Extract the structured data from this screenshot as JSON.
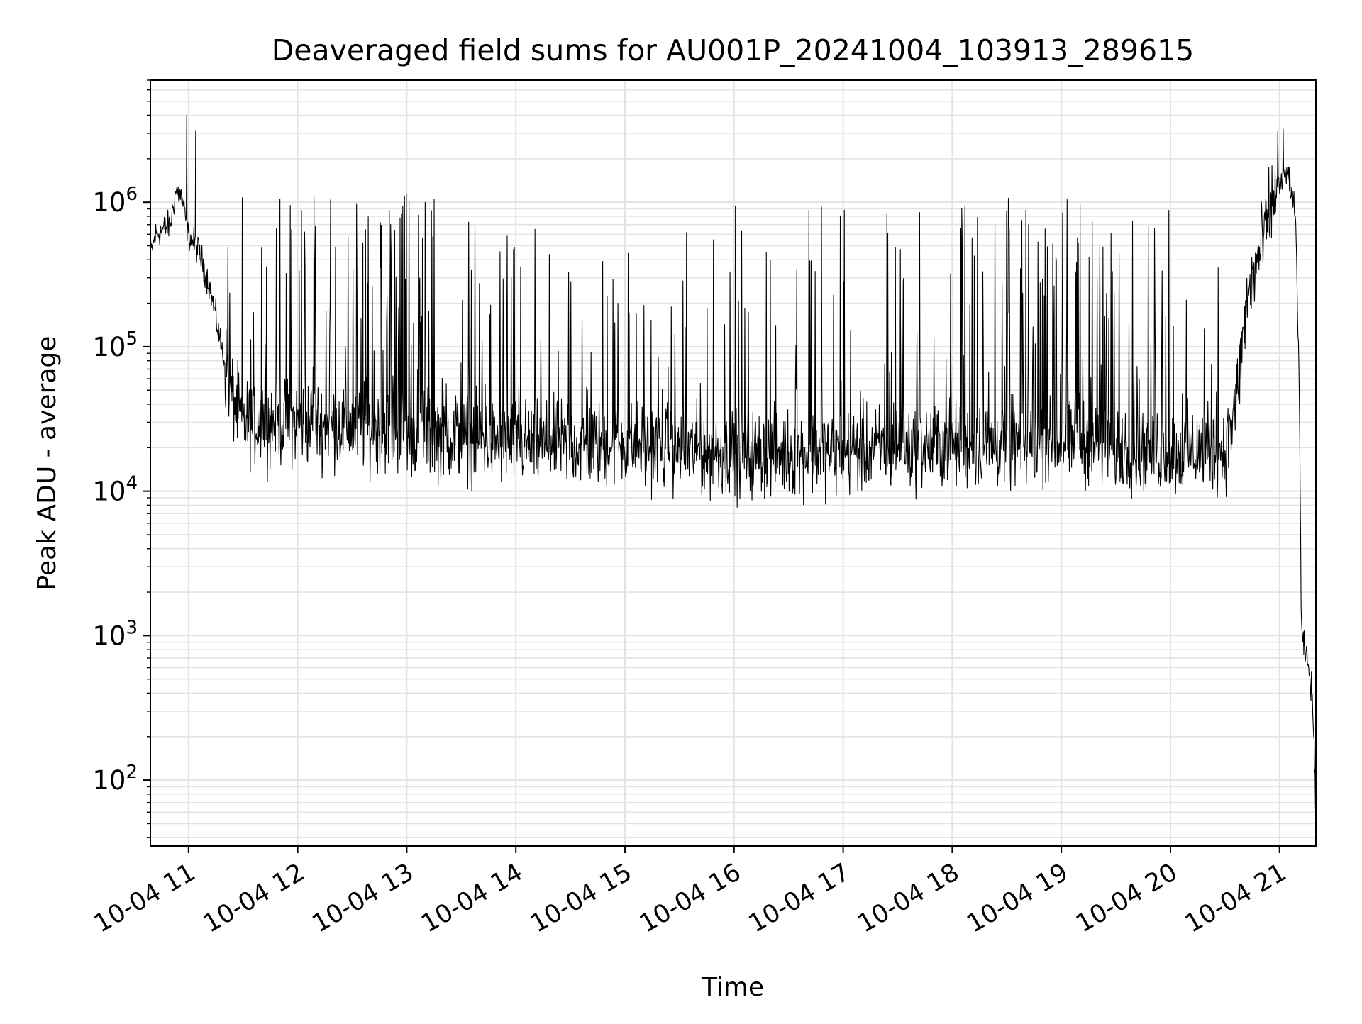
{
  "chart_data": {
    "type": "line",
    "title": "Deaveraged field sums for AU001P_20241004_103913_289615",
    "xlabel": "Time",
    "ylabel": "Peak ADU - average",
    "yscale": "log",
    "xlim": [
      "2024-10-04 10:39",
      "2024-10-04 21:20"
    ],
    "ylim": [
      35,
      7000000
    ],
    "grid": true,
    "line_color": "#000000",
    "grid_color": "#e3e3e3",
    "x_ticks": [
      {
        "t": "2024-10-04 11:00",
        "label": "10-04 11"
      },
      {
        "t": "2024-10-04 12:00",
        "label": "10-04 12"
      },
      {
        "t": "2024-10-04 13:00",
        "label": "10-04 13"
      },
      {
        "t": "2024-10-04 14:00",
        "label": "10-04 14"
      },
      {
        "t": "2024-10-04 15:00",
        "label": "10-04 15"
      },
      {
        "t": "2024-10-04 16:00",
        "label": "10-04 16"
      },
      {
        "t": "2024-10-04 17:00",
        "label": "10-04 17"
      },
      {
        "t": "2024-10-04 18:00",
        "label": "10-04 18"
      },
      {
        "t": "2024-10-04 19:00",
        "label": "10-04 19"
      },
      {
        "t": "2024-10-04 20:00",
        "label": "10-04 20"
      },
      {
        "t": "2024-10-04 21:00",
        "label": "10-04 21"
      }
    ],
    "y_ticks": [
      {
        "value": 100,
        "base": "10",
        "exp": "2"
      },
      {
        "value": 1000,
        "base": "10",
        "exp": "3"
      },
      {
        "value": 10000,
        "base": "10",
        "exp": "4"
      },
      {
        "value": 100000,
        "base": "10",
        "exp": "5"
      },
      {
        "value": 1000000,
        "base": "10",
        "exp": "6"
      }
    ],
    "series": [
      {
        "baseline": [
          {
            "t": "2024-10-04 10:39",
            "y": 430000
          },
          {
            "t": "2024-10-04 10:42",
            "y": 600000
          },
          {
            "t": "2024-10-04 10:50",
            "y": 700000
          },
          {
            "t": "2024-10-04 10:53",
            "y": 1200000
          },
          {
            "t": "2024-10-04 10:56",
            "y": 1100000
          },
          {
            "t": "2024-10-04 11:00",
            "y": 600000
          },
          {
            "t": "2024-10-04 11:06",
            "y": 450000
          },
          {
            "t": "2024-10-04 11:12",
            "y": 250000
          },
          {
            "t": "2024-10-04 11:18",
            "y": 100000
          },
          {
            "t": "2024-10-04 11:24",
            "y": 45000
          },
          {
            "t": "2024-10-04 11:30",
            "y": 30000
          },
          {
            "t": "2024-10-04 12:00",
            "y": 30000
          },
          {
            "t": "2024-10-04 13:00",
            "y": 26000
          },
          {
            "t": "2024-10-04 14:00",
            "y": 21000
          },
          {
            "t": "2024-10-04 15:00",
            "y": 21000
          },
          {
            "t": "2024-10-04 16:00",
            "y": 18000
          },
          {
            "t": "2024-10-04 17:00",
            "y": 19000
          },
          {
            "t": "2024-10-04 18:00",
            "y": 21000
          },
          {
            "t": "2024-10-04 19:00",
            "y": 21000
          },
          {
            "t": "2024-10-04 20:00",
            "y": 19000
          },
          {
            "t": "2024-10-04 20:30",
            "y": 19000
          },
          {
            "t": "2024-10-04 20:36",
            "y": 40000
          },
          {
            "t": "2024-10-04 20:42",
            "y": 200000
          },
          {
            "t": "2024-10-04 20:50",
            "y": 500000
          },
          {
            "t": "2024-10-04 20:58",
            "y": 1200000
          },
          {
            "t": "2024-10-04 21:05",
            "y": 1600000
          },
          {
            "t": "2024-10-04 21:09",
            "y": 700000
          },
          {
            "t": "2024-10-04 21:11",
            "y": 40000
          },
          {
            "t": "2024-10-04 21:12",
            "y": 1000
          },
          {
            "t": "2024-10-04 21:15",
            "y": 700
          },
          {
            "t": "2024-10-04 21:18",
            "y": 400
          },
          {
            "t": "2024-10-04 21:20",
            "y": 60
          }
        ],
        "noise_decades": 0.18,
        "spike_segments": [
          {
            "start": "2024-10-04 11:20",
            "end": "2024-10-04 11:40",
            "count": 6,
            "peak": 1200000
          },
          {
            "start": "2024-10-04 11:40",
            "end": "2024-10-04 12:30",
            "count": 30,
            "peak": 1200000
          },
          {
            "start": "2024-10-04 12:30",
            "end": "2024-10-04 13:15",
            "count": 55,
            "peak": 1150000
          },
          {
            "start": "2024-10-04 13:15",
            "end": "2024-10-04 14:00",
            "count": 25,
            "peak": 900000
          },
          {
            "start": "2024-10-04 14:00",
            "end": "2024-10-04 16:45",
            "count": 55,
            "peak": 950000
          },
          {
            "start": "2024-10-04 16:45",
            "end": "2024-10-04 18:30",
            "count": 45,
            "peak": 1000000
          },
          {
            "start": "2024-10-04 18:30",
            "end": "2024-10-04 19:25",
            "count": 60,
            "peak": 1100000
          },
          {
            "start": "2024-10-04 19:25",
            "end": "2024-10-04 20:30",
            "count": 30,
            "peak": 950000
          }
        ],
        "peaks": [
          {
            "t": "2024-10-04 10:59",
            "y": 4000000
          },
          {
            "t": "2024-10-04 11:04",
            "y": 3100000
          },
          {
            "t": "2024-10-04 20:59",
            "y": 3100000
          },
          {
            "t": "2024-10-04 21:02",
            "y": 3200000
          }
        ]
      }
    ]
  }
}
